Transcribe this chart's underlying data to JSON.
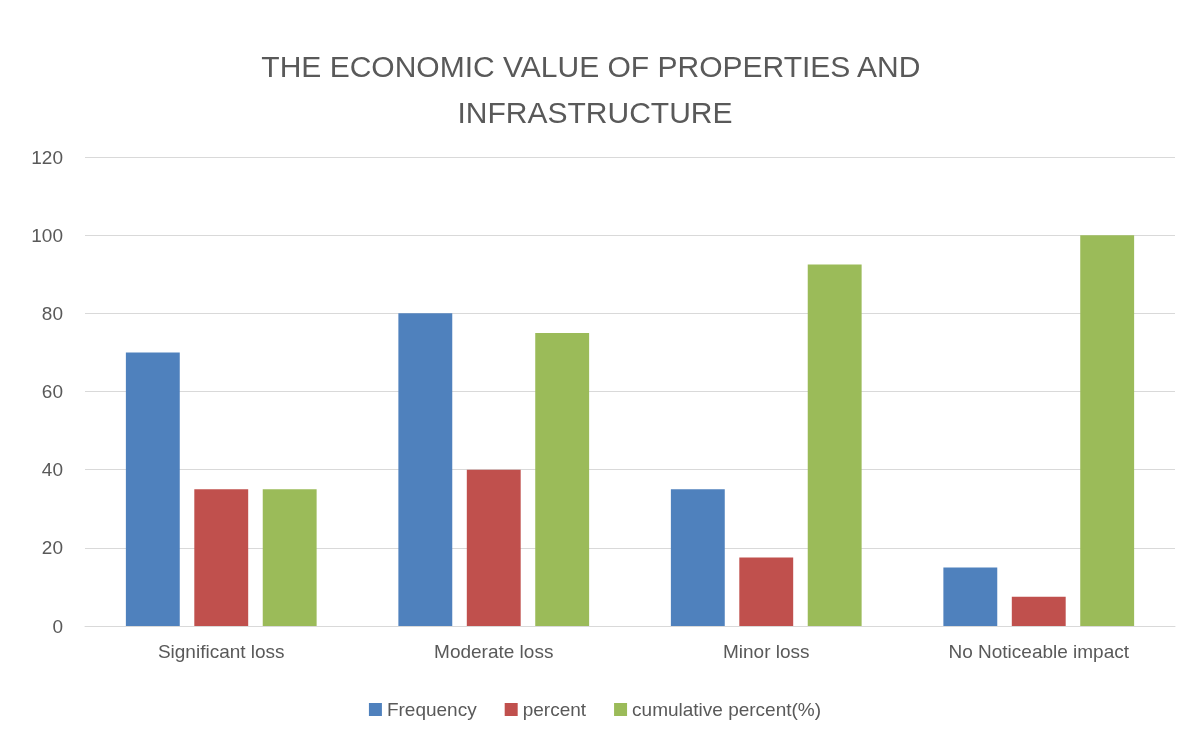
{
  "chart_data": {
    "type": "bar",
    "title": "THE ECONOMIC VALUE OF PROPERTIES AND INFRASTRUCTURE",
    "categories": [
      "Significant loss",
      "Moderate loss",
      "Minor loss",
      "No Noticeable impact"
    ],
    "series": [
      {
        "name": "Frequency",
        "color": "#4f81bd",
        "values": [
          70,
          80,
          35,
          15
        ]
      },
      {
        "name": "percent",
        "color": "#c0504d",
        "values": [
          35,
          40,
          17.5,
          7.5
        ]
      },
      {
        "name": "cumulative percent(%)",
        "color": "#9bbb59",
        "values": [
          35,
          75,
          92.5,
          100
        ]
      }
    ],
    "ylim": [
      0,
      120
    ],
    "yticks": [
      0,
      20,
      40,
      60,
      80,
      100,
      120
    ],
    "grid": "y",
    "legend": "bottom"
  }
}
